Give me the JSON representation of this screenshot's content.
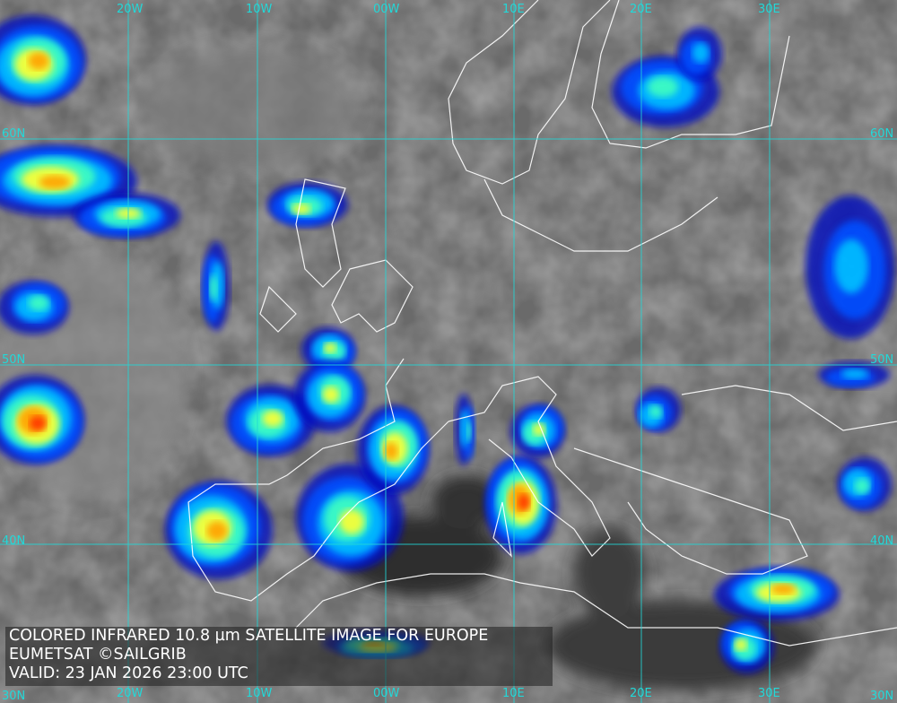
{
  "caption": {
    "line1": "COLORED INFRARED 10.8 µm SATELLITE IMAGE FOR EUROPE",
    "line2": "EUMETSAT ©SAILGRIB",
    "line3": "VALID:  23 JAN 2026 23:00 UTC"
  },
  "grid": {
    "longitudes": [
      "20W",
      "10W",
      "00W",
      "10E",
      "20E",
      "30E"
    ],
    "latitudes": [
      "60N",
      "50N",
      "40N",
      "30N"
    ],
    "color": "#22d8d8"
  },
  "colors": {
    "background_gray": "#6e6e6e",
    "coastline": "#ffffff",
    "cloud_scale": [
      "#0010c0",
      "#0050ff",
      "#00c0ff",
      "#40ffc0",
      "#ffff30",
      "#ffa000",
      "#ff3000"
    ]
  }
}
